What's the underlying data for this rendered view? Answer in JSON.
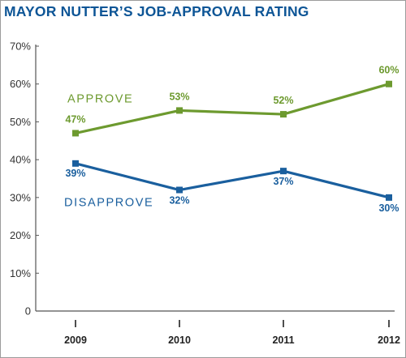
{
  "chart_data": {
    "type": "line",
    "title": "MAYOR NUTTER’S JOB-APPROVAL RATING",
    "categories": [
      "2009",
      "2010",
      "2011",
      "2012"
    ],
    "series": [
      {
        "name": "APPROVE",
        "values": [
          47,
          53,
          52,
          60
        ],
        "labels": [
          "47%",
          "53%",
          "52%",
          "60%"
        ],
        "color": "#6d9a2f"
      },
      {
        "name": "DISAPPROVE",
        "values": [
          39,
          32,
          37,
          30
        ],
        "labels": [
          "39%",
          "32%",
          "37%",
          "30%"
        ],
        "color": "#1a5f9e"
      }
    ],
    "ylim": [
      0,
      70
    ],
    "yticks": [
      0,
      10,
      20,
      30,
      40,
      50,
      60,
      70
    ],
    "ytick_labels": [
      "0",
      "10%",
      "20%",
      "30%",
      "40%",
      "50%",
      "60%",
      "70%"
    ],
    "xlabel": "",
    "ylabel": "",
    "grid": false,
    "legend": "inline labels"
  }
}
